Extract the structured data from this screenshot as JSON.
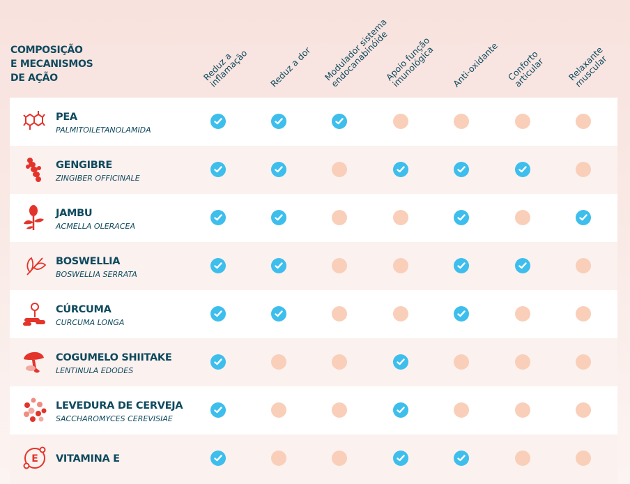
{
  "title_lines": [
    "COMPOSIÇÃO",
    "E MECANISMOS",
    "DE AÇÃO"
  ],
  "columns": [
    [
      "Reduz a",
      "inflamação"
    ],
    [
      "Reduz a dor"
    ],
    [
      "Modulador sistema",
      "endocanabinóide"
    ],
    [
      "Apoio função",
      "imunológica"
    ],
    [
      "Anti-oxidante"
    ],
    [
      "Conforto",
      "articular"
    ],
    [
      "Relaxante",
      "muscular"
    ]
  ],
  "colors": {
    "check": "#3dbeec",
    "empty": "#f9cfb9",
    "icon": "#e3342b",
    "text": "#0f4a5e"
  },
  "rows": [
    {
      "name": "PEA",
      "scientific": "PALMITOILETANOLAMIDA",
      "icon": "molecule-icon",
      "marks": [
        1,
        1,
        1,
        0,
        0,
        0,
        0
      ]
    },
    {
      "name": "GENGIBRE",
      "scientific": "ZINGIBER OFFICINALE",
      "icon": "ginger-icon",
      "marks": [
        1,
        1,
        0,
        1,
        1,
        1,
        0
      ]
    },
    {
      "name": "JAMBU",
      "scientific": "ACMELLA OLERACEA",
      "icon": "jambu-flower-icon",
      "marks": [
        1,
        1,
        0,
        0,
        1,
        0,
        1
      ]
    },
    {
      "name": "BOSWELLIA",
      "scientific": "BOSWELLIA SERRATA",
      "icon": "boswellia-leaf-icon",
      "marks": [
        1,
        1,
        0,
        0,
        1,
        1,
        0
      ]
    },
    {
      "name": "CÚRCUMA",
      "scientific": "CURCUMA LONGA",
      "icon": "curcuma-icon",
      "marks": [
        1,
        1,
        0,
        0,
        1,
        0,
        0
      ]
    },
    {
      "name": "COGUMELO SHIITAKE",
      "scientific": "LENTINULA EDODES",
      "icon": "mushroom-icon",
      "marks": [
        1,
        0,
        0,
        1,
        0,
        0,
        0
      ]
    },
    {
      "name": "LEVEDURA DE CERVEJA",
      "scientific": "SACCHAROMYCES CEREVISIAE",
      "icon": "yeast-icon",
      "marks": [
        1,
        0,
        0,
        1,
        0,
        0,
        0
      ]
    },
    {
      "name": "VITAMINA E",
      "scientific": "",
      "icon": "vitamin-e-icon",
      "marks": [
        1,
        0,
        0,
        1,
        1,
        0,
        0
      ]
    }
  ]
}
